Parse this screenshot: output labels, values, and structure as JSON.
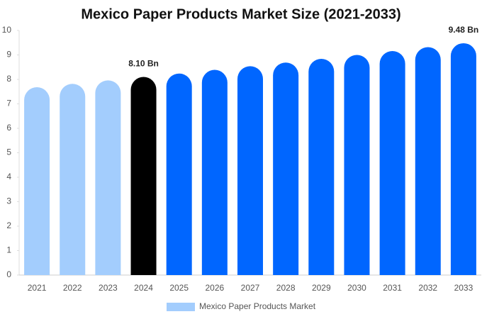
{
  "chart_data": {
    "type": "bar",
    "title": "Mexico Paper Products Market Size (2021-2033)",
    "categories": [
      "2021",
      "2022",
      "2023",
      "2024",
      "2025",
      "2026",
      "2027",
      "2028",
      "2029",
      "2030",
      "2031",
      "2032",
      "2033"
    ],
    "series": [
      {
        "name": "Mexico Paper Products Market",
        "color": "#a3cdfd",
        "colors": [
          "#a3cdfd",
          "#a3cdfd",
          "#a3cdfd",
          "#000000",
          "#0066ff",
          "#0066ff",
          "#0066ff",
          "#0066ff",
          "#0066ff",
          "#0066ff",
          "#0066ff",
          "#0066ff",
          "#0066ff"
        ],
        "values": [
          7.68,
          7.82,
          7.96,
          8.1,
          8.24,
          8.39,
          8.54,
          8.69,
          8.84,
          9.0,
          9.16,
          9.32,
          9.48
        ],
        "value_labels": [
          null,
          null,
          null,
          "8.10 Bn",
          null,
          null,
          null,
          null,
          null,
          null,
          null,
          null,
          "9.48 Bn"
        ]
      }
    ],
    "ylim": [
      0,
      10
    ],
    "yticks": [
      0,
      1,
      2,
      3,
      4,
      5,
      6,
      7,
      8,
      9,
      10
    ],
    "grid": false,
    "legend": "bottom"
  }
}
